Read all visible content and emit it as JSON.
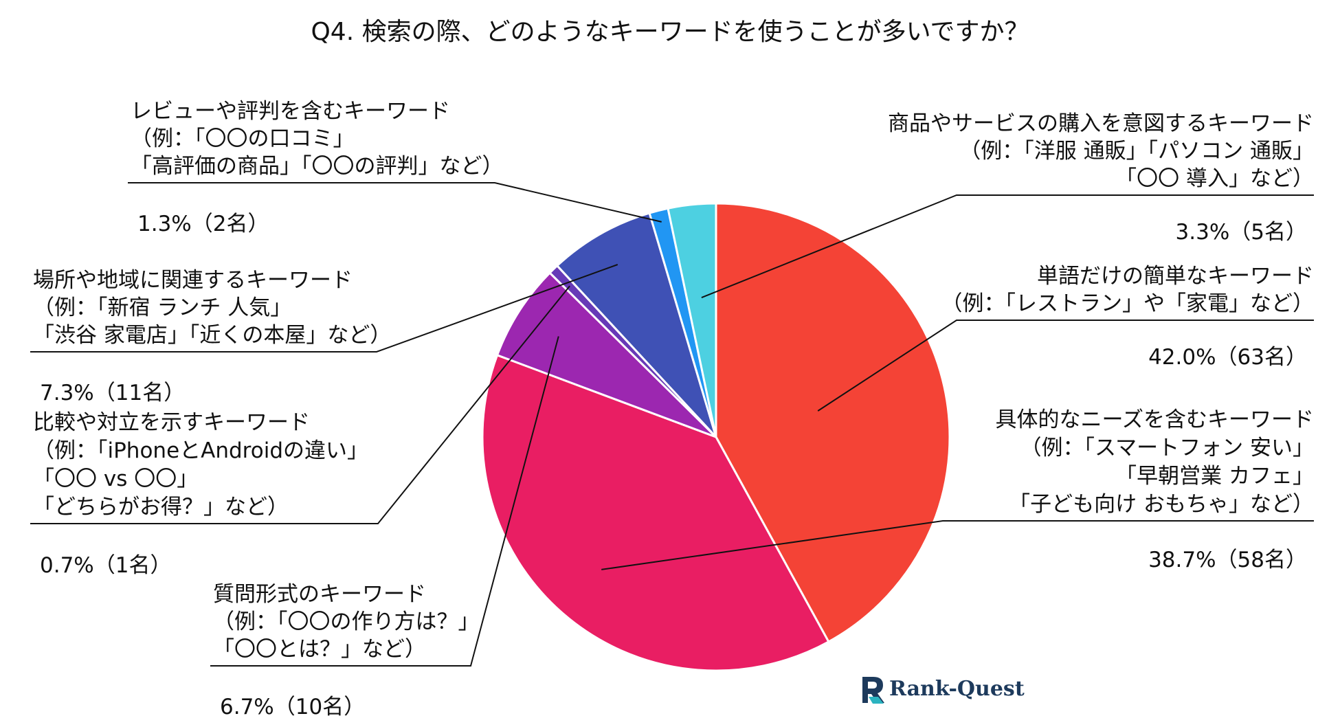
{
  "chart_data": {
    "type": "pie",
    "title": "Q4. 検索の際、どのようなキーワードを使うことが多いですか？",
    "start": "12 o'clock, clockwise",
    "slices": [
      {
        "lines": [
          "単語だけの簡単なキーワード",
          "（例：「レストラン」や「家電」など）"
        ],
        "value_label": "42.0%（63名）",
        "percent": 42.0,
        "count": 63,
        "color": "#f44336"
      },
      {
        "lines": [
          "具体的なニーズを含むキーワード",
          "（例：「スマートフォン 安い」",
          "「早朝営業 カフェ」",
          "「子ども向け おもちゃ」など）"
        ],
        "value_label": "38.7%（58名）",
        "percent": 38.7,
        "count": 58,
        "color": "#e91e63"
      },
      {
        "lines": [
          "質問形式のキーワード",
          "（例：「〇〇の作り方は？」",
          "「〇〇とは？」など）"
        ],
        "value_label": "6.7%（10名）",
        "percent": 6.7,
        "count": 10,
        "color": "#9c27b0"
      },
      {
        "lines": [
          "比較や対立を示すキーワード",
          "（例：「iPhoneとAndroidの違い」",
          "「〇〇 vs 〇〇」",
          "「どちらがお得？」など）"
        ],
        "value_label": "0.7%（1名）",
        "percent": 0.7,
        "count": 1,
        "color": "#673ab7"
      },
      {
        "lines": [
          "場所や地域に関連するキーワード",
          "（例：「新宿 ランチ 人気」",
          "「渋谷 家電店」「近くの本屋」など）"
        ],
        "value_label": "7.3%（11名）",
        "percent": 7.3,
        "count": 11,
        "color": "#3f51b5"
      },
      {
        "lines": [
          "レビューや評判を含むキーワード",
          "（例：「〇〇の口コミ」",
          "「高評価の商品」「〇〇の評判」など）"
        ],
        "value_label": "1.3%（2名）",
        "percent": 1.3,
        "count": 2,
        "color": "#2196f3"
      },
      {
        "lines": [
          "商品やサービスの購入を意図するキーワード",
          "（例：「洋服 通販」「パソコン 通販」",
          "「〇〇 導入」など）"
        ],
        "value_label": "3.3%（5名）",
        "percent": 3.3,
        "count": 5,
        "color": "#4dd0e1"
      }
    ]
  },
  "logo": {
    "text": "Rank-Quest",
    "icon": "rank-quest-logo-icon",
    "color": "#1d3a5c",
    "accent": "#2bb3c0"
  }
}
